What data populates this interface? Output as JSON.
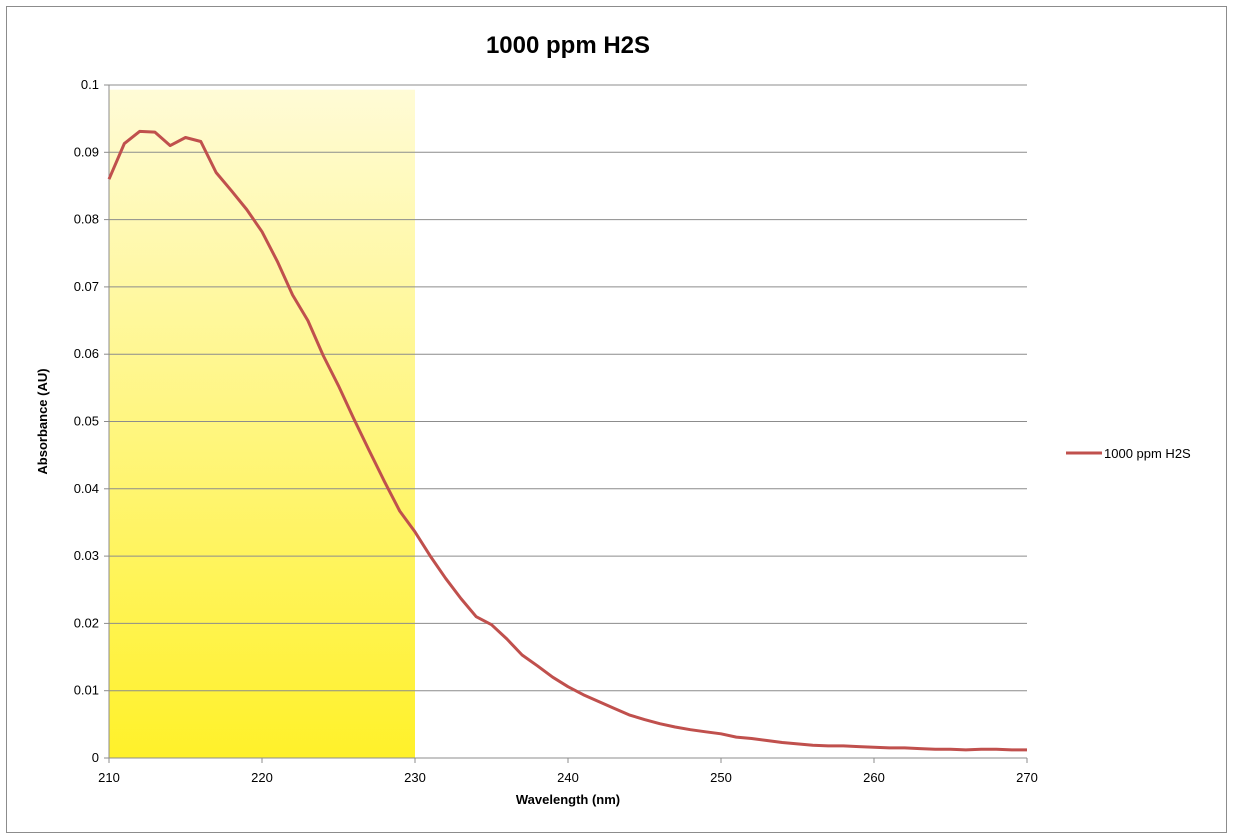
{
  "chart_data": {
    "type": "line",
    "title": "1000 ppm H2S",
    "xlabel": "Wavelength (nm)",
    "ylabel": "Absorbance (AU)",
    "xlim": [
      210,
      270
    ],
    "ylim": [
      0,
      0.1
    ],
    "x_ticks": [
      210,
      220,
      230,
      240,
      250,
      260,
      270
    ],
    "y_ticks": [
      0,
      0.01,
      0.02,
      0.03,
      0.04,
      0.05,
      0.06,
      0.07,
      0.08,
      0.09,
      0.1
    ],
    "y_tick_labels": [
      "0",
      "0.01",
      "0.02",
      "0.03",
      "0.04",
      "0.05",
      "0.06",
      "0.07",
      "0.08",
      "0.09",
      "0.1"
    ],
    "grid": true,
    "legend_position": "right",
    "highlight_region": {
      "x_start": 210,
      "x_end": 230,
      "color_top": "#fffbd6",
      "color_bottom": "#fff12a"
    },
    "series": [
      {
        "name": "1000 ppm H2S",
        "color": "#c0504d",
        "x": [
          210,
          211,
          212,
          213,
          214,
          215,
          216,
          217,
          218,
          219,
          220,
          221,
          222,
          223,
          224,
          225,
          226,
          227,
          228,
          229,
          230,
          231,
          232,
          233,
          234,
          235,
          236,
          237,
          238,
          239,
          240,
          241,
          242,
          243,
          244,
          245,
          246,
          247,
          248,
          249,
          250,
          251,
          252,
          253,
          254,
          255,
          256,
          257,
          258,
          259,
          260,
          261,
          262,
          263,
          264,
          265,
          266,
          267,
          268,
          269,
          270
        ],
        "y": [
          0.086,
          0.0913,
          0.0931,
          0.093,
          0.091,
          0.0922,
          0.0916,
          0.087,
          0.0843,
          0.0815,
          0.0782,
          0.0738,
          0.0688,
          0.065,
          0.0598,
          0.0553,
          0.0504,
          0.0457,
          0.0411,
          0.0367,
          0.0336,
          0.03,
          0.0267,
          0.0237,
          0.021,
          0.0198,
          0.0177,
          0.0153,
          0.0137,
          0.012,
          0.0106,
          0.0094,
          0.0084,
          0.0074,
          0.0064,
          0.0057,
          0.0051,
          0.0046,
          0.0042,
          0.0039,
          0.0036,
          0.0031,
          0.0029,
          0.0026,
          0.0023,
          0.0021,
          0.0019,
          0.0018,
          0.0018,
          0.0017,
          0.0016,
          0.0015,
          0.0015,
          0.0014,
          0.0013,
          0.0013,
          0.0012,
          0.0013,
          0.0013,
          0.0012,
          0.0012
        ]
      }
    ]
  }
}
